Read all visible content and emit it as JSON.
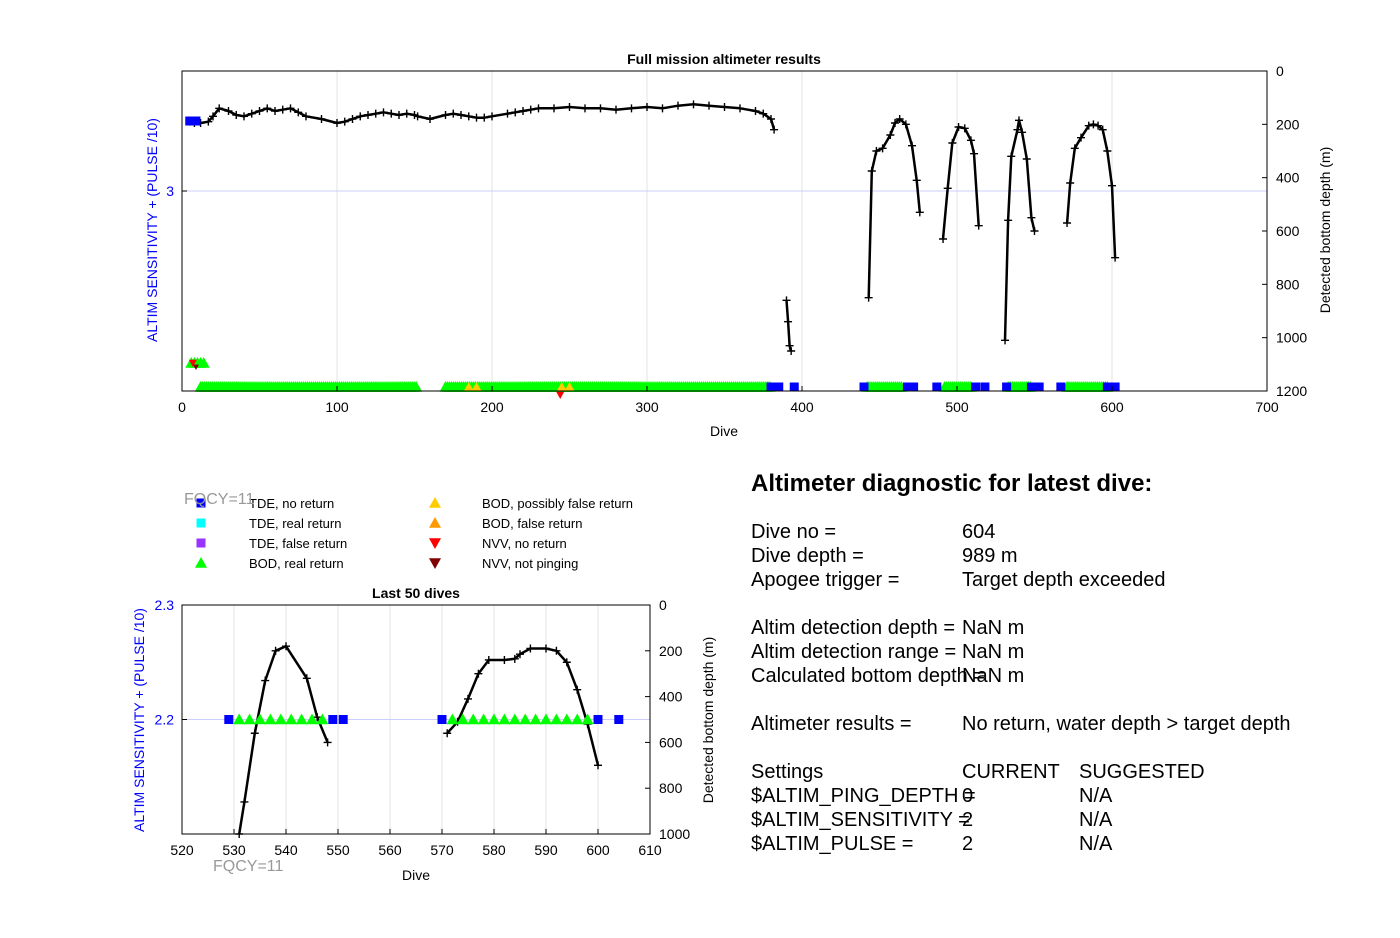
{
  "colors": {
    "axis_left": "#0000ff",
    "tde_no_return": "#0000ff",
    "tde_real_return": "#00ffff",
    "tde_false_return": "#9933ff",
    "bod_real_return": "#00ff00",
    "bod_possibly_false": "#ffcc00",
    "bod_false_return": "#ff9900",
    "nvv_no_return": "#ff0000",
    "nvv_not_pinging": "#800000",
    "depth_line": "#000000",
    "fqcy_label": "#999999"
  },
  "chart_data": [
    {
      "type": "line",
      "title": "Full mission altimeter results",
      "xlabel": "Dive",
      "ylabel": "ALTIM SENSITIVITY + (PULSE /10)",
      "y2label": "Detected bottom depth (m)",
      "xlim": [
        0,
        700
      ],
      "xticks": [
        0,
        100,
        200,
        300,
        400,
        500,
        600,
        700
      ],
      "ylim_left": [
        2.0,
        3.6
      ],
      "yticks_left": [
        3
      ],
      "ylim_right": [
        1200,
        0
      ],
      "yticks_right": [
        0,
        200,
        400,
        600,
        800,
        1000,
        1200
      ],
      "grid": true,
      "depth_series": [
        {
          "name": "",
          "points": [
            [
              5,
              190
            ],
            [
              8,
              195
            ],
            [
              12,
              195
            ],
            [
              17,
              190
            ],
            [
              20,
              170
            ],
            [
              24,
              140
            ],
            [
              30,
              150
            ],
            [
              35,
              165
            ],
            [
              40,
              170
            ],
            [
              45,
              160
            ],
            [
              50,
              150
            ],
            [
              55,
              140
            ],
            [
              60,
              150
            ],
            [
              65,
              145
            ],
            [
              70,
              140
            ],
            [
              75,
              155
            ],
            [
              80,
              170
            ],
            [
              90,
              180
            ],
            [
              100,
              195
            ],
            [
              105,
              190
            ],
            [
              110,
              180
            ],
            [
              115,
              170
            ],
            [
              120,
              165
            ],
            [
              125,
              160
            ],
            [
              130,
              155
            ],
            [
              135,
              160
            ],
            [
              140,
              165
            ],
            [
              145,
              160
            ],
            [
              150,
              165
            ],
            [
              152,
              170
            ],
            [
              160,
              180
            ],
            [
              170,
              165
            ],
            [
              175,
              160
            ],
            [
              180,
              165
            ],
            [
              185,
              170
            ],
            [
              190,
              175
            ],
            [
              195,
              175
            ],
            [
              200,
              170
            ],
            [
              210,
              160
            ],
            [
              215,
              155
            ],
            [
              220,
              150
            ],
            [
              225,
              145
            ],
            [
              230,
              140
            ],
            [
              240,
              140
            ],
            [
              250,
              135
            ],
            [
              260,
              140
            ],
            [
              270,
              140
            ],
            [
              280,
              145
            ],
            [
              290,
              140
            ],
            [
              300,
              135
            ],
            [
              310,
              140
            ],
            [
              320,
              130
            ],
            [
              330,
              125
            ],
            [
              340,
              130
            ],
            [
              350,
              135
            ],
            [
              360,
              140
            ],
            [
              370,
              150
            ],
            [
              375,
              160
            ],
            [
              380,
              180
            ],
            [
              382,
              220
            ]
          ]
        },
        {
          "name": "",
          "points": [
            [
              390,
              860
            ],
            [
              391,
              940
            ],
            [
              392,
              1030
            ],
            [
              393,
              1050
            ]
          ]
        },
        {
          "name": "",
          "points": [
            [
              443,
              850
            ],
            [
              445,
              375
            ],
            [
              448,
              300
            ],
            [
              452,
              290
            ],
            [
              457,
              240
            ],
            [
              460,
              195
            ],
            [
              463,
              180
            ],
            [
              467,
              200
            ],
            [
              471,
              280
            ],
            [
              474,
              410
            ],
            [
              476,
              530
            ]
          ]
        },
        {
          "name": "",
          "points": [
            [
              491,
              630
            ],
            [
              494,
              440
            ],
            [
              497,
              270
            ],
            [
              501,
              210
            ],
            [
              505,
              215
            ],
            [
              509,
              260
            ],
            [
              511,
              310
            ],
            [
              514,
              580
            ]
          ]
        },
        {
          "name": "",
          "points": [
            [
              531,
              1010
            ],
            [
              533,
              560
            ],
            [
              535,
              320
            ],
            [
              539,
              220
            ],
            [
              540,
              185
            ],
            [
              542,
              230
            ],
            [
              545,
              330
            ],
            [
              548,
              550
            ],
            [
              550,
              600
            ]
          ]
        },
        {
          "name": "",
          "points": [
            [
              571,
              570
            ],
            [
              573,
              420
            ],
            [
              576,
              290
            ],
            [
              580,
              250
            ],
            [
              585,
              205
            ],
            [
              588,
              200
            ],
            [
              591,
              205
            ],
            [
              594,
              220
            ],
            [
              597,
              300
            ],
            [
              600,
              430
            ],
            [
              602,
              700
            ]
          ]
        }
      ],
      "tde_no_return_points": [
        [
          5,
          3.35
        ],
        [
          6,
          3.35
        ],
        [
          7,
          3.35
        ],
        [
          8,
          3.35
        ],
        [
          9,
          3.35
        ],
        [
          380,
          2.0
        ],
        [
          385,
          2.0
        ],
        [
          395,
          2.0
        ],
        [
          440,
          2.0
        ],
        [
          468,
          2.0
        ],
        [
          472,
          2.0
        ],
        [
          487,
          2.0
        ],
        [
          512,
          2.0
        ],
        [
          518,
          2.0
        ],
        [
          532,
          2.0
        ],
        [
          548,
          2.0
        ],
        [
          553,
          2.0
        ],
        [
          567,
          2.0
        ],
        [
          597,
          2.0
        ],
        [
          602,
          2.0
        ]
      ],
      "bod_real_return_ranges": [
        [
          12,
          152
        ],
        [
          170,
          380
        ],
        [
          442,
          465
        ],
        [
          492,
          510
        ],
        [
          533,
          548
        ],
        [
          571,
          598
        ]
      ],
      "bod_real_return_cluster": [
        [
          6,
          2.14
        ],
        [
          8,
          2.14
        ],
        [
          10,
          2.14
        ],
        [
          12,
          2.14
        ],
        [
          14,
          2.14
        ]
      ],
      "bod_possibly_false_points": [
        [
          185,
          2.0
        ],
        [
          190,
          2.0
        ],
        [
          245,
          2.0
        ],
        [
          250,
          2.0
        ]
      ],
      "nvv_no_return_points": [
        [
          7,
          2.14
        ],
        [
          244,
          1.98
        ]
      ],
      "nvv_not_pinging_points": [
        [
          9,
          2.12
        ]
      ]
    },
    {
      "type": "line",
      "title": "Last 50 dives",
      "xlabel": "Dive",
      "ylabel": "ALTIM SENSITIVITY + (PULSE /10)",
      "y2label": "Detected bottom depth (m)",
      "xlim": [
        520,
        610
      ],
      "xticks": [
        520,
        530,
        540,
        550,
        560,
        570,
        580,
        590,
        600,
        610
      ],
      "ylim_left": [
        2.1,
        2.3
      ],
      "yticks_left": [
        2.2,
        2.3
      ],
      "ylim_right": [
        1000,
        0
      ],
      "yticks_right": [
        0,
        200,
        400,
        600,
        800,
        1000
      ],
      "grid": true,
      "depth_series": [
        {
          "name": "",
          "points": [
            [
              531,
              1000
            ],
            [
              532,
              860
            ],
            [
              534,
              560
            ],
            [
              536,
              330
            ],
            [
              538,
              200
            ],
            [
              540,
              180
            ],
            [
              544,
              320
            ],
            [
              546,
              490
            ],
            [
              548,
              600
            ]
          ]
        },
        {
          "name": "",
          "points": [
            [
              571,
              560
            ],
            [
              573,
              510
            ],
            [
              575,
              410
            ],
            [
              577,
              300
            ],
            [
              579,
              240
            ],
            [
              582,
              240
            ],
            [
              584,
              235
            ],
            [
              585,
              215
            ],
            [
              587,
              190
            ],
            [
              590,
              190
            ],
            [
              592,
              200
            ],
            [
              594,
              250
            ],
            [
              596,
              370
            ],
            [
              598,
              520
            ],
            [
              600,
              700
            ]
          ]
        }
      ],
      "tde_no_return_points": [
        [
          529,
          2.2
        ],
        [
          549,
          2.2
        ],
        [
          551,
          2.2
        ],
        [
          570,
          2.2
        ],
        [
          600,
          2.2
        ],
        [
          604,
          2.2
        ]
      ],
      "bod_real_return_points": [
        [
          531,
          2.2
        ],
        [
          533,
          2.2
        ],
        [
          535,
          2.2
        ],
        [
          537,
          2.2
        ],
        [
          539,
          2.2
        ],
        [
          541,
          2.2
        ],
        [
          543,
          2.2
        ],
        [
          545,
          2.2
        ],
        [
          547,
          2.2
        ],
        [
          572,
          2.2
        ],
        [
          574,
          2.2
        ],
        [
          576,
          2.2
        ],
        [
          578,
          2.2
        ],
        [
          580,
          2.2
        ],
        [
          582,
          2.2
        ],
        [
          584,
          2.2
        ],
        [
          586,
          2.2
        ],
        [
          588,
          2.2
        ],
        [
          590,
          2.2
        ],
        [
          592,
          2.2
        ],
        [
          594,
          2.2
        ],
        [
          596,
          2.2
        ],
        [
          598,
          2.2
        ]
      ]
    }
  ],
  "legend": {
    "items": [
      {
        "label": "TDE, no return",
        "marker": "square",
        "color": "#0000ff"
      },
      {
        "label": "TDE, real return",
        "marker": "square",
        "color": "#00ffff"
      },
      {
        "label": "TDE, false return",
        "marker": "square",
        "color": "#9933ff"
      },
      {
        "label": "BOD, real return",
        "marker": "triangle-up",
        "color": "#00ff00"
      },
      {
        "label": "BOD, possibly false return",
        "marker": "triangle-up",
        "color": "#ffcc00"
      },
      {
        "label": "BOD, false return",
        "marker": "triangle-up",
        "color": "#ff9900"
      },
      {
        "label": "NVV, no return",
        "marker": "triangle-down",
        "color": "#ff0000"
      },
      {
        "label": "NVV, not pinging",
        "marker": "triangle-down",
        "color": "#800000"
      }
    ]
  },
  "fqcy_label": "FQCY=11",
  "diagnostic": {
    "title": "Altimeter diagnostic for latest dive:",
    "dive_no_label": "Dive no =",
    "dive_no_value": "604",
    "dive_depth_label": "Dive depth =",
    "dive_depth_value": "989 m",
    "apogee_label": "Apogee trigger =",
    "apogee_value": "Target depth exceeded",
    "detect_depth_label": "Altim detection depth =",
    "detect_depth_value": "NaN m",
    "detect_range_label": "Altim detection range =",
    "detect_range_value": "NaN m",
    "calc_bottom_label": "Calculated bottom depth =",
    "calc_bottom_value": "NaN m",
    "results_label": "Altimeter results =",
    "results_value": "No return, water depth > target depth",
    "settings_label": "Settings",
    "current_header": "CURRENT",
    "suggested_header": "SUGGESTED",
    "ping_depth_label": "$ALTIM_PING_DEPTH =",
    "ping_depth_current": "0",
    "ping_depth_suggested": "N/A",
    "sensitivity_label": "$ALTIM_SENSITIVITY =",
    "sensitivity_current": "2",
    "sensitivity_suggested": "N/A",
    "pulse_label": "$ALTIM_PULSE =",
    "pulse_current": "2",
    "pulse_suggested": "N/A"
  }
}
